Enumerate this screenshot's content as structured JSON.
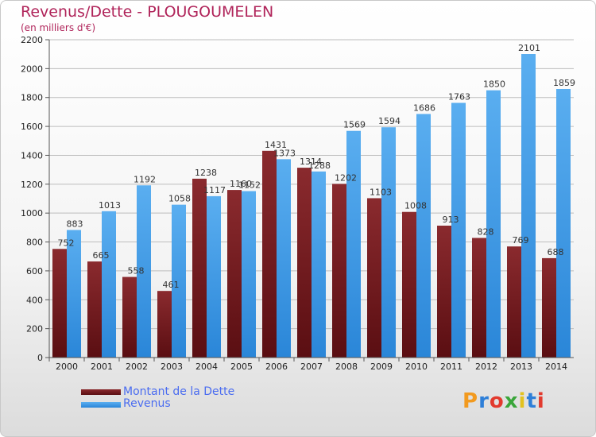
{
  "title": "Revenus/Dette - PLOUGOUMELEN",
  "subtitle": "(en milliers d'€)",
  "brand": "Proxiti",
  "colors": {
    "dette": "#7a1f24",
    "revenus": "#3d9ae6",
    "title": "#b0245a",
    "legend_text": "#4a6cf0"
  },
  "legend": [
    {
      "label": "Montant de la Dette",
      "color": "#7a1f24"
    },
    {
      "label": "Revenus",
      "color": "#3d9ae6"
    }
  ],
  "chart_data": {
    "type": "bar",
    "categories": [
      "2000",
      "2001",
      "2002",
      "2003",
      "2004",
      "2005",
      "2006",
      "2007",
      "2008",
      "2009",
      "2010",
      "2011",
      "2012",
      "2013",
      "2014"
    ],
    "series": [
      {
        "name": "Montant de la Dette",
        "values": [
          752,
          665,
          558,
          461,
          1238,
          1160,
          1431,
          1314,
          1202,
          1103,
          1008,
          913,
          828,
          769,
          688
        ]
      },
      {
        "name": "Revenus",
        "values": [
          883,
          1013,
          1192,
          1058,
          1117,
          1152,
          1373,
          1288,
          1569,
          1594,
          1686,
          1763,
          1850,
          2101,
          1859
        ]
      }
    ],
    "ylim": [
      0,
      2200
    ],
    "yticks": [
      0,
      200,
      400,
      600,
      800,
      1000,
      1200,
      1400,
      1600,
      1800,
      2000,
      2200
    ],
    "grid": true,
    "legend_position": "bottom-left"
  }
}
